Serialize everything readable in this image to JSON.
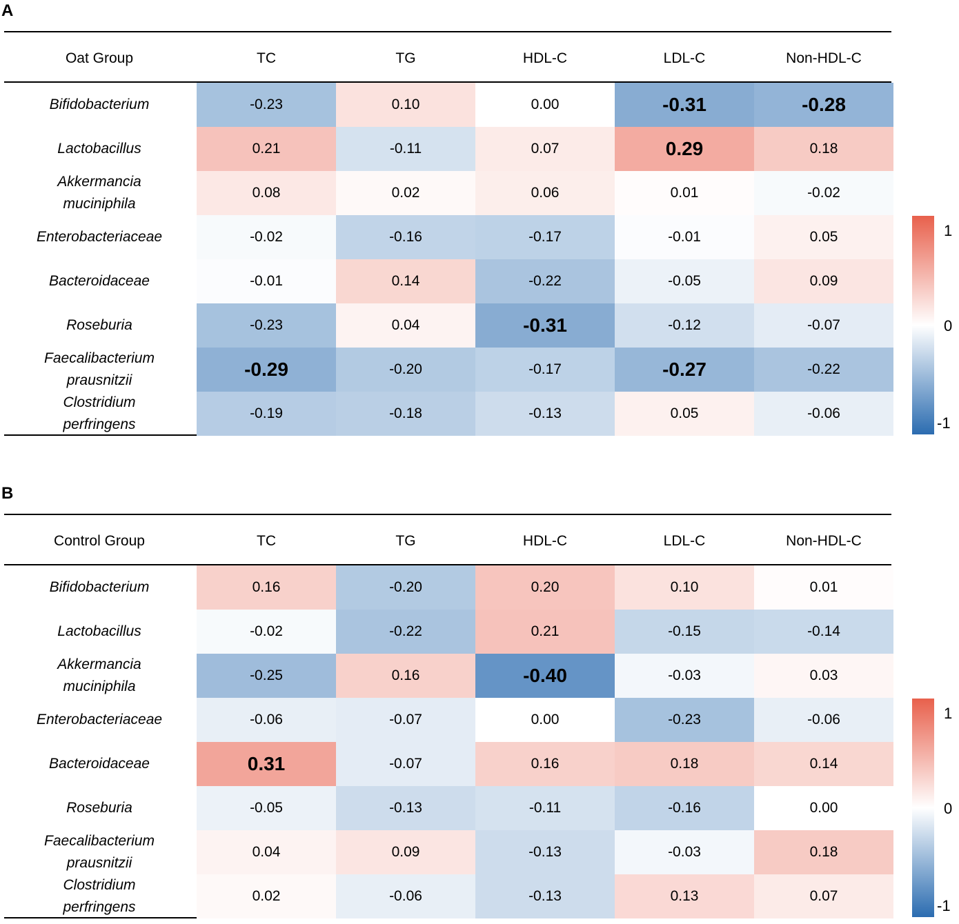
{
  "chart_data": [
    {
      "type": "heatmap",
      "panel": "A",
      "group_label": "Oat Group",
      "columns": [
        "TC",
        "TG",
        "HDL-C",
        "LDL-C",
        "Non-HDL-C"
      ],
      "rows": [
        {
          "label": [
            "Bifidobacterium"
          ],
          "values": [
            "-0.23",
            "0.10",
            "0.00",
            "-0.31",
            "-0.28"
          ],
          "bold": [
            false,
            false,
            false,
            true,
            true
          ]
        },
        {
          "label": [
            "Lactobacillus"
          ],
          "values": [
            "0.21",
            "-0.11",
            "0.07",
            "0.29",
            "0.18"
          ],
          "bold": [
            false,
            false,
            false,
            true,
            false
          ]
        },
        {
          "label": [
            "Akkermancia",
            "muciniphila"
          ],
          "values": [
            "0.08",
            "0.02",
            "0.06",
            "0.01",
            "-0.02"
          ],
          "bold": [
            false,
            false,
            false,
            false,
            false
          ]
        },
        {
          "label": [
            "Enterobacteriaceae"
          ],
          "values": [
            "-0.02",
            "-0.16",
            "-0.17",
            "-0.01",
            "0.05"
          ],
          "bold": [
            false,
            false,
            false,
            false,
            false
          ]
        },
        {
          "label": [
            "Bacteroidaceae"
          ],
          "values": [
            "-0.01",
            "0.14",
            "-0.22",
            "-0.05",
            "0.09"
          ],
          "bold": [
            false,
            false,
            false,
            false,
            false
          ]
        },
        {
          "label": [
            "Roseburia"
          ],
          "values": [
            "-0.23",
            "0.04",
            "-0.31",
            "-0.12",
            "-0.07"
          ],
          "bold": [
            false,
            false,
            true,
            false,
            false
          ]
        },
        {
          "label": [
            "Faecalibacterium",
            "prausnitzii"
          ],
          "values": [
            "-0.29",
            "-0.20",
            "-0.17",
            "-0.27",
            "-0.22"
          ],
          "bold": [
            true,
            false,
            false,
            true,
            false
          ]
        },
        {
          "label": [
            "Clostridium",
            "perfringens"
          ],
          "values": [
            "-0.19",
            "-0.18",
            "-0.13",
            "0.05",
            "-0.06"
          ],
          "bold": [
            false,
            false,
            false,
            false,
            false
          ]
        }
      ],
      "color_scale": {
        "min": -1,
        "max": 1,
        "ticks": [
          "1",
          "0",
          "-1"
        ],
        "low_color": "#2b6cb0",
        "mid_color": "#ffffff",
        "high_color": "#e8604c"
      }
    },
    {
      "type": "heatmap",
      "panel": "B",
      "group_label": "Control Group",
      "columns": [
        "TC",
        "TG",
        "HDL-C",
        "LDL-C",
        "Non-HDL-C"
      ],
      "rows": [
        {
          "label": [
            "Bifidobacterium"
          ],
          "values": [
            "0.16",
            "-0.20",
            "0.20",
            "0.10",
            "0.01"
          ],
          "bold": [
            false,
            false,
            false,
            false,
            false
          ]
        },
        {
          "label": [
            "Lactobacillus"
          ],
          "values": [
            "-0.02",
            "-0.22",
            "0.21",
            "-0.15",
            "-0.14"
          ],
          "bold": [
            false,
            false,
            false,
            false,
            false
          ]
        },
        {
          "label": [
            "Akkermancia",
            "muciniphila"
          ],
          "values": [
            "-0.25",
            "0.16",
            "-0.40",
            "-0.03",
            "0.03"
          ],
          "bold": [
            false,
            false,
            true,
            false,
            false
          ]
        },
        {
          "label": [
            "Enterobacteriaceae"
          ],
          "values": [
            "-0.06",
            "-0.07",
            "0.00",
            "-0.23",
            "-0.06"
          ],
          "bold": [
            false,
            false,
            false,
            false,
            false
          ]
        },
        {
          "label": [
            "Bacteroidaceae"
          ],
          "values": [
            "0.31",
            "-0.07",
            "0.16",
            "0.18",
            "0.14"
          ],
          "bold": [
            true,
            false,
            false,
            false,
            false
          ]
        },
        {
          "label": [
            "Roseburia"
          ],
          "values": [
            "-0.05",
            "-0.13",
            "-0.11",
            "-0.16",
            "0.00"
          ],
          "bold": [
            false,
            false,
            false,
            false,
            false
          ]
        },
        {
          "label": [
            "Faecalibacterium",
            "prausnitzii"
          ],
          "values": [
            "0.04",
            "0.09",
            "-0.13",
            "-0.03",
            "0.18"
          ],
          "bold": [
            false,
            false,
            false,
            false,
            false
          ]
        },
        {
          "label": [
            "Clostridium",
            "perfringens"
          ],
          "values": [
            "0.02",
            "-0.06",
            "-0.13",
            "0.13",
            "0.07"
          ],
          "bold": [
            false,
            false,
            false,
            false,
            false
          ]
        }
      ],
      "color_scale": {
        "min": -1,
        "max": 1,
        "ticks": [
          "1",
          "0",
          "-1"
        ],
        "low_color": "#2b6cb0",
        "mid_color": "#ffffff",
        "high_color": "#e8604c"
      }
    }
  ]
}
